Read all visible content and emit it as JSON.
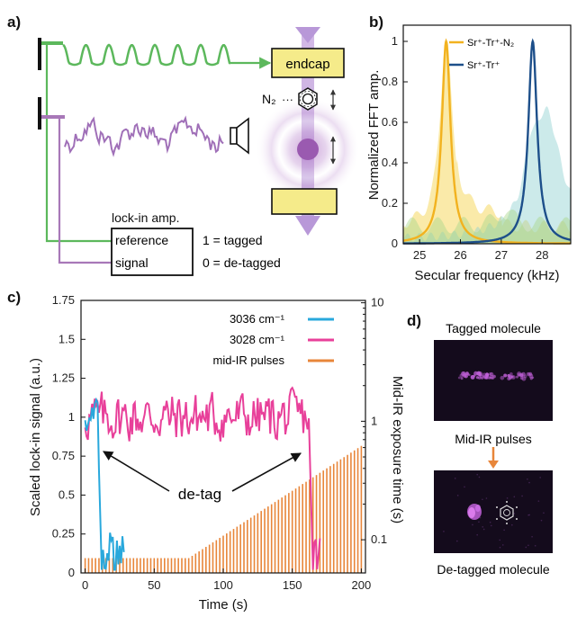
{
  "panel_a": {
    "label": "a)",
    "endcap": "endcap",
    "n2": "N₂",
    "lockin_title": "lock-in amp.",
    "reference": "reference",
    "signal": "signal",
    "tagged": "1 = tagged",
    "detagged": "0 = de-tagged",
    "colors": {
      "green": "#5cb85c",
      "purple": "#a878b8",
      "yellow": "#f5eb8a"
    }
  },
  "panel_d": {
    "label": "d)",
    "tagged_title": "Tagged molecule",
    "pulses_text": "Mid-IR   pulses",
    "detagged_title": "De-tagged molecule",
    "arrow_color": "#e8863a"
  },
  "chart_data": [
    {
      "panel": "b)",
      "type": "line",
      "title": "",
      "xlabel": "Secular frequency (kHz)",
      "ylabel": "Normalized FFT amp.",
      "xlim": [
        24.6,
        28.7
      ],
      "ylim": [
        0,
        1.08
      ],
      "xticks": [
        25,
        26,
        27,
        28
      ],
      "yticks": [
        0,
        0.2,
        0.4,
        0.6,
        0.8,
        1
      ],
      "legend": [
        "Sr⁺-Tr⁺-N₂",
        "Sr⁺-Tr⁺"
      ],
      "series": [
        {
          "name": "Sr⁺-Tr⁺-N₂",
          "color": "#f2b21f",
          "center": 25.65,
          "width": 0.13,
          "peak": 1.0
        },
        {
          "name": "Sr⁺-Tr⁺",
          "color": "#1d4f8a",
          "center": 27.77,
          "width": 0.13,
          "peak": 1.0
        }
      ],
      "fill_colors": [
        "#f5d040",
        "#8fd0d0",
        "#a8d88a"
      ]
    },
    {
      "panel": "c)",
      "type": "line",
      "title": "",
      "xlabel": "Time (s)",
      "ylabel": "Scaled lock-in signal (a.u.)",
      "y2label": "Mid-IR exposure time (s)",
      "xlim": [
        -3,
        203
      ],
      "ylim": [
        0,
        1.75
      ],
      "xticks": [
        0,
        50,
        100,
        150,
        200
      ],
      "yticks": [
        0,
        0.25,
        0.5,
        0.75,
        1,
        1.25,
        1.5,
        1.75
      ],
      "y2_ticklabels": [
        "10",
        "1",
        "0.1"
      ],
      "y2_range_log10": [
        -1.28,
        1.02
      ],
      "annotation": "de-tag",
      "series": [
        {
          "name": "3036 cm⁻¹",
          "color": "#29a8dc",
          "detag_time": 10,
          "end_time": 28,
          "level": 1.0
        },
        {
          "name": "3028 cm⁻¹",
          "color": "#e8409a",
          "detag_time": 163,
          "end_time": 170,
          "level": 1.0
        },
        {
          "name": "mid-IR pulses",
          "color": "#e8863a",
          "base_exposure_s": 0.07,
          "ramp_start_s": 75,
          "max_exposure_s": 0.62,
          "pulse_period_s": 2.5
        }
      ]
    }
  ]
}
